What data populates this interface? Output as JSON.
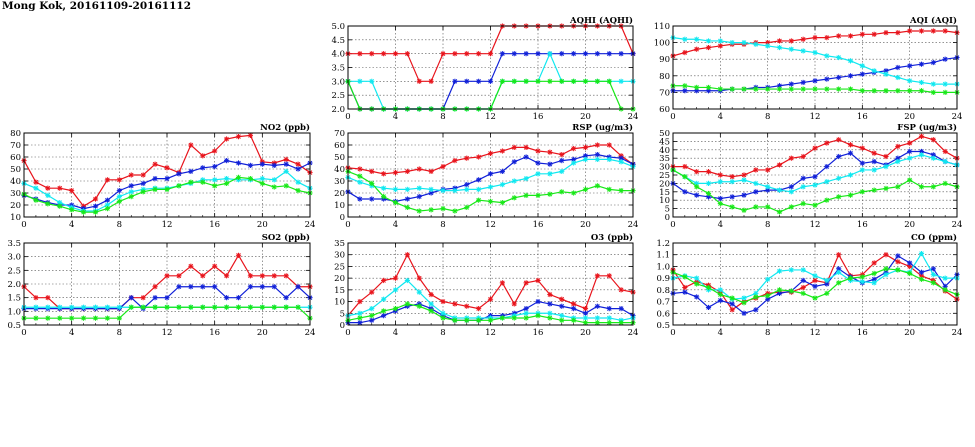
{
  "page": {
    "title": "Mong Kok, 20161109-20161112"
  },
  "colors": {
    "red": "#e8141c",
    "blue": "#1020d8",
    "cyan": "#10e8f0",
    "green": "#18e818"
  },
  "chart_data": [
    {
      "id": "no2",
      "type": "line",
      "title": "NO2 (ppb)",
      "xlim": [
        0,
        24
      ],
      "ylim": [
        10,
        80
      ],
      "xticks": [
        "0",
        "4",
        "8",
        "12",
        "16",
        "20",
        "24"
      ],
      "yticks": [
        "10",
        "20",
        "30",
        "40",
        "50",
        "60",
        "70",
        "80"
      ],
      "grid": true,
      "series": [
        {
          "color": "red",
          "values": [
            57,
            39,
            34,
            34,
            32,
            19,
            25,
            41,
            41,
            45,
            45,
            54,
            51,
            47,
            70,
            61,
            65,
            75,
            77,
            78,
            56,
            55,
            58,
            54,
            47
          ]
        },
        {
          "color": "blue",
          "values": [
            28,
            25,
            22,
            20,
            20,
            17,
            19,
            24,
            32,
            36,
            38,
            42,
            42,
            46,
            48,
            51,
            52,
            57,
            55,
            53,
            54,
            53,
            54,
            50,
            55
          ]
        },
        {
          "color": "cyan",
          "values": [
            38,
            34,
            28,
            22,
            18,
            15,
            15,
            20,
            27,
            31,
            33,
            34,
            34,
            36,
            38,
            41,
            41,
            42,
            41,
            41,
            42,
            41,
            48,
            39,
            34
          ]
        },
        {
          "color": "green",
          "values": [
            29,
            24,
            21,
            19,
            16,
            14,
            14,
            17,
            23,
            27,
            31,
            33,
            33,
            36,
            39,
            39,
            36,
            38,
            43,
            42,
            38,
            35,
            36,
            32,
            30
          ]
        }
      ]
    },
    {
      "id": "so2",
      "type": "line",
      "title": "SO2 (ppb)",
      "xlim": [
        0,
        24
      ],
      "ylim": [
        0.5,
        3.5
      ],
      "xticks": [
        "0",
        "4",
        "8",
        "12",
        "16",
        "20",
        "24"
      ],
      "yticks": [
        "0.5",
        "1.0",
        "1.5",
        "2.0",
        "2.5",
        "3.0",
        "3.5"
      ],
      "grid": true,
      "series": [
        {
          "color": "red",
          "values": [
            1.9,
            1.5,
            1.5,
            1.1,
            1.1,
            1.1,
            1.1,
            1.1,
            1.1,
            1.5,
            1.5,
            1.9,
            2.3,
            2.3,
            2.65,
            2.3,
            2.65,
            2.3,
            3.05,
            2.3,
            2.3,
            2.3,
            2.3,
            1.9,
            1.9
          ]
        },
        {
          "color": "blue",
          "values": [
            1.1,
            1.1,
            1.1,
            1.1,
            1.1,
            1.1,
            1.1,
            1.1,
            1.1,
            1.5,
            1.1,
            1.5,
            1.5,
            1.9,
            1.9,
            1.9,
            1.9,
            1.5,
            1.5,
            1.9,
            1.9,
            1.9,
            1.5,
            1.9,
            1.5
          ]
        },
        {
          "color": "cyan",
          "values": [
            1.15,
            1.15,
            1.15,
            1.15,
            1.15,
            1.15,
            1.15,
            1.15,
            1.15,
            1.15,
            1.15,
            1.15,
            1.15,
            1.15,
            1.15,
            1.15,
            1.15,
            1.15,
            1.15,
            1.15,
            1.15,
            1.15,
            1.15,
            1.15,
            1.15
          ]
        },
        {
          "color": "green",
          "values": [
            0.75,
            0.75,
            0.75,
            0.75,
            0.75,
            0.75,
            0.75,
            0.75,
            0.75,
            1.15,
            1.15,
            1.15,
            1.15,
            1.15,
            1.15,
            1.15,
            1.15,
            1.15,
            1.15,
            1.15,
            1.15,
            1.15,
            1.15,
            1.15,
            0.75
          ]
        }
      ]
    },
    {
      "id": "aqhi",
      "type": "line",
      "title": "AQHI (AQHI)",
      "xlim": [
        0,
        24
      ],
      "ylim": [
        2.0,
        5.0
      ],
      "xticks": [
        "0",
        "4",
        "8",
        "12",
        "16",
        "20",
        "24"
      ],
      "yticks": [
        "2.0",
        "2.5",
        "3.0",
        "3.5",
        "4.0",
        "4.5",
        "5.0"
      ],
      "grid": true,
      "series": [
        {
          "color": "red",
          "values": [
            4,
            4,
            4,
            4,
            4,
            4,
            3,
            3,
            4,
            4,
            4,
            4,
            4,
            5,
            5,
            5,
            5,
            5,
            5,
            5,
            5,
            5,
            5,
            5,
            4
          ]
        },
        {
          "color": "blue",
          "values": [
            3,
            2,
            2,
            2,
            2,
            2,
            2,
            2,
            2,
            3,
            3,
            3,
            3,
            4,
            4,
            4,
            4,
            4,
            4,
            4,
            4,
            4,
            4,
            4,
            4
          ]
        },
        {
          "color": "cyan",
          "values": [
            3,
            3,
            3,
            2,
            2,
            2,
            2,
            2,
            2,
            2,
            2,
            2,
            2,
            3,
            3,
            3,
            3,
            4,
            3,
            3,
            3,
            3,
            3,
            3,
            3
          ]
        },
        {
          "color": "green",
          "values": [
            3,
            2,
            2,
            2,
            2,
            2,
            2,
            2,
            2,
            2,
            2,
            2,
            2,
            3,
            3,
            3,
            3,
            3,
            3,
            3,
            3,
            3,
            3,
            2,
            2
          ]
        }
      ]
    },
    {
      "id": "rsp",
      "type": "line",
      "title": "RSP (ug/m3)",
      "xlim": [
        0,
        24
      ],
      "ylim": [
        0,
        70
      ],
      "xticks": [
        "0",
        "4",
        "8",
        "12",
        "16",
        "20",
        "24"
      ],
      "yticks": [
        "0",
        "10",
        "20",
        "30",
        "40",
        "50",
        "60",
        "70"
      ],
      "grid": true,
      "series": [
        {
          "color": "red",
          "values": [
            41,
            40,
            38,
            36,
            37,
            38,
            40,
            38,
            42,
            47,
            49,
            50,
            53,
            55,
            58,
            58,
            55,
            54,
            52,
            57,
            58,
            60,
            60,
            51,
            44
          ]
        },
        {
          "color": "blue",
          "values": [
            21,
            15,
            15,
            15,
            13,
            15,
            17,
            20,
            23,
            24,
            27,
            31,
            36,
            38,
            46,
            50,
            45,
            44,
            47,
            48,
            51,
            52,
            50,
            49,
            44
          ]
        },
        {
          "color": "cyan",
          "values": [
            33,
            29,
            26,
            24,
            23,
            23,
            24,
            23,
            22,
            22,
            23,
            23,
            25,
            27,
            30,
            32,
            36,
            36,
            38,
            45,
            48,
            48,
            48,
            46,
            42
          ]
        },
        {
          "color": "green",
          "values": [
            38,
            34,
            28,
            17,
            12,
            8,
            5,
            6,
            7,
            5,
            8,
            14,
            13,
            12,
            16,
            18,
            18,
            19,
            21,
            20,
            23,
            26,
            23,
            22,
            22
          ]
        }
      ]
    },
    {
      "id": "o3",
      "type": "line",
      "title": "O3 (ppb)",
      "xlim": [
        0,
        24
      ],
      "ylim": [
        0,
        35
      ],
      "xticks": [
        "0",
        "4",
        "8",
        "12",
        "16",
        "20",
        "24"
      ],
      "yticks": [
        "0",
        "5",
        "10",
        "15",
        "20",
        "25",
        "30",
        "35"
      ],
      "grid": true,
      "series": [
        {
          "color": "red",
          "values": [
            4,
            10,
            14,
            19,
            20,
            30,
            20,
            13,
            10,
            9,
            8,
            7,
            11,
            18,
            9,
            18,
            19,
            13,
            11,
            9,
            7,
            21,
            21,
            15,
            14
          ]
        },
        {
          "color": "blue",
          "values": [
            1,
            1,
            2,
            4,
            6,
            8,
            9,
            7,
            4,
            2,
            2,
            2,
            4,
            4,
            5,
            7,
            10,
            9,
            8,
            7,
            5,
            8,
            7,
            7,
            4
          ]
        },
        {
          "color": "cyan",
          "values": [
            4,
            5,
            7,
            11,
            15,
            19,
            14,
            9,
            5,
            3,
            3,
            3,
            3,
            3,
            4,
            5,
            5,
            5,
            4,
            3,
            3,
            3,
            3,
            2,
            3
          ]
        },
        {
          "color": "green",
          "values": [
            2,
            3,
            4,
            6,
            7,
            9,
            8,
            6,
            3,
            2,
            2,
            2,
            2,
            3,
            3,
            3,
            4,
            3,
            2,
            2,
            1,
            1,
            1,
            1,
            1
          ]
        }
      ]
    },
    {
      "id": "aqi",
      "type": "line",
      "title": "AQI (AQI)",
      "xlim": [
        0,
        24
      ],
      "ylim": [
        60,
        110
      ],
      "xticks": [
        "0",
        "4",
        "8",
        "12",
        "16",
        "20",
        "24"
      ],
      "yticks": [
        "60",
        "70",
        "80",
        "90",
        "100",
        "110"
      ],
      "grid": true,
      "series": [
        {
          "color": "red",
          "values": [
            92,
            94,
            96,
            97,
            98,
            99,
            99,
            100,
            100,
            101,
            101,
            102,
            103,
            103,
            104,
            104,
            105,
            105,
            106,
            106,
            107,
            107,
            107,
            107,
            106
          ]
        },
        {
          "color": "blue",
          "values": [
            71,
            71,
            71,
            71,
            71,
            72,
            72,
            73,
            73,
            74,
            75,
            76,
            77,
            78,
            79,
            80,
            81,
            82,
            83,
            85,
            86,
            87,
            88,
            90,
            91
          ]
        },
        {
          "color": "cyan",
          "values": [
            103,
            102,
            102,
            101,
            101,
            100,
            100,
            99,
            98,
            97,
            96,
            95,
            94,
            92,
            91,
            89,
            86,
            83,
            81,
            79,
            77,
            76,
            75,
            75,
            75
          ]
        },
        {
          "color": "green",
          "values": [
            74,
            74,
            73,
            73,
            72,
            72,
            72,
            72,
            72,
            72,
            72,
            72,
            72,
            72,
            72,
            72,
            71,
            71,
            71,
            71,
            71,
            71,
            70,
            70,
            70
          ]
        }
      ]
    },
    {
      "id": "fsp",
      "type": "line",
      "title": "FSP (ug/m3)",
      "xlim": [
        0,
        24
      ],
      "ylim": [
        0,
        50
      ],
      "xticks": [
        "0",
        "4",
        "8",
        "12",
        "16",
        "20",
        "24"
      ],
      "yticks": [
        "0",
        "5",
        "10",
        "15",
        "20",
        "25",
        "30",
        "35",
        "40",
        "45",
        "50"
      ],
      "grid": true,
      "series": [
        {
          "color": "red",
          "values": [
            30,
            30,
            27,
            27,
            25,
            24,
            25,
            28,
            28,
            31,
            35,
            36,
            41,
            44,
            46,
            43,
            41,
            38,
            36,
            42,
            44,
            48,
            46,
            39,
            35
          ]
        },
        {
          "color": "blue",
          "values": [
            20,
            15,
            13,
            12,
            11,
            12,
            13,
            15,
            16,
            16,
            18,
            23,
            24,
            30,
            36,
            38,
            32,
            33,
            31,
            35,
            39,
            39,
            37,
            33,
            31
          ]
        },
        {
          "color": "cyan",
          "values": [
            28,
            24,
            20,
            20,
            21,
            21,
            22,
            20,
            18,
            16,
            15,
            18,
            19,
            21,
            23,
            25,
            28,
            28,
            30,
            33,
            35,
            37,
            35,
            33,
            31
          ]
        },
        {
          "color": "green",
          "values": [
            28,
            24,
            18,
            14,
            8,
            6,
            4,
            6,
            6,
            3,
            6,
            8,
            7,
            10,
            12,
            13,
            15,
            16,
            17,
            18,
            22,
            18,
            18,
            20,
            18
          ]
        }
      ]
    },
    {
      "id": "co",
      "type": "line",
      "title": "CO (ppm)",
      "xlim": [
        0,
        24
      ],
      "ylim": [
        0.5,
        1.2
      ],
      "xticks": [
        "0",
        "4",
        "8",
        "12",
        "16",
        "20",
        "24"
      ],
      "yticks": [
        "0.5",
        "0.6",
        "0.7",
        "0.8",
        "0.9",
        "1.0",
        "1.1",
        "1.2"
      ],
      "grid": true,
      "series": [
        {
          "color": "red",
          "values": [
            0.97,
            0.82,
            0.87,
            0.84,
            0.78,
            0.63,
            0.7,
            0.73,
            0.77,
            0.78,
            0.78,
            0.82,
            0.88,
            0.86,
            1.1,
            0.92,
            0.93,
            1.03,
            1.1,
            1.04,
            1.0,
            0.92,
            0.88,
            0.79,
            0.72
          ]
        },
        {
          "color": "blue",
          "values": [
            0.77,
            0.78,
            0.74,
            0.65,
            0.71,
            0.68,
            0.6,
            0.63,
            0.72,
            0.77,
            0.79,
            0.88,
            0.83,
            0.85,
            0.98,
            0.91,
            0.86,
            0.89,
            0.95,
            1.09,
            1.03,
            0.95,
            0.98,
            0.83,
            0.93
          ]
        },
        {
          "color": "cyan",
          "values": [
            0.9,
            0.92,
            0.9,
            0.8,
            0.8,
            0.72,
            0.73,
            0.77,
            0.89,
            0.96,
            0.97,
            0.97,
            0.92,
            0.88,
            0.95,
            0.88,
            0.87,
            0.86,
            0.93,
            0.97,
            0.95,
            1.11,
            0.93,
            0.9,
            0.9
          ]
        },
        {
          "color": "green",
          "values": [
            0.95,
            0.91,
            0.85,
            0.82,
            0.76,
            0.73,
            0.69,
            0.74,
            0.75,
            0.8,
            0.79,
            0.77,
            0.73,
            0.77,
            0.86,
            0.9,
            0.91,
            0.94,
            0.98,
            0.97,
            0.94,
            0.89,
            0.86,
            0.8,
            0.76
          ]
        }
      ]
    }
  ]
}
